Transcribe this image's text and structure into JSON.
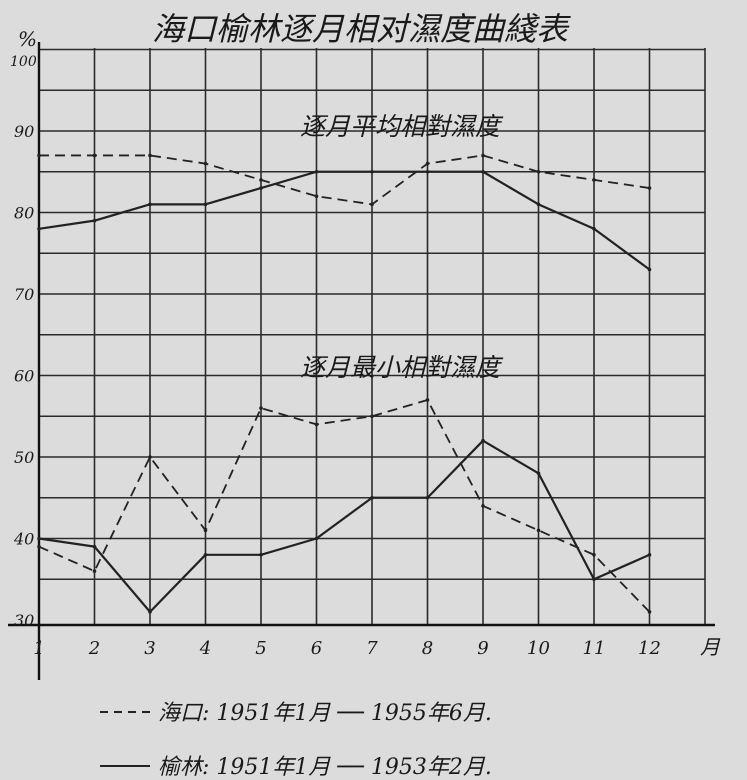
{
  "chart_data": {
    "type": "line",
    "title": "海口榆林逐月相对濕度曲綫表",
    "y_unit": "%",
    "y_top_label": "100",
    "x_unit": "月",
    "ylim": [
      30,
      100
    ],
    "yticks": [
      30,
      40,
      50,
      60,
      70,
      80,
      90
    ],
    "categories": [
      "1",
      "2",
      "3",
      "4",
      "5",
      "6",
      "7",
      "8",
      "9",
      "10",
      "11",
      "12"
    ],
    "grid": true,
    "annotations": {
      "mean": "逐月平均相對濕度",
      "min": "逐月最小相對濕度"
    },
    "series": [
      {
        "name": "海口",
        "group": "mean",
        "style": "dashed",
        "values": [
          87,
          87,
          87,
          86,
          84,
          82,
          81,
          86,
          87,
          85,
          84,
          83
        ]
      },
      {
        "name": "榆林",
        "group": "mean",
        "style": "solid",
        "values": [
          78,
          79,
          81,
          81,
          83,
          85,
          85,
          85,
          85,
          81,
          78,
          73
        ]
      },
      {
        "name": "海口",
        "group": "min",
        "style": "dashed",
        "values": [
          39,
          36,
          50,
          41,
          56,
          54,
          55,
          57,
          44,
          41,
          38,
          31
        ]
      },
      {
        "name": "榆林",
        "group": "min",
        "style": "solid",
        "values": [
          40,
          39,
          31,
          38,
          38,
          40,
          45,
          45,
          52,
          48,
          35,
          38
        ]
      }
    ],
    "legend": [
      {
        "style": "dashed",
        "text": "海口: 1951年1月 ── 1955年6月."
      },
      {
        "style": "solid",
        "text": "榆林: 1951年1月 ── 1953年2月."
      }
    ]
  }
}
